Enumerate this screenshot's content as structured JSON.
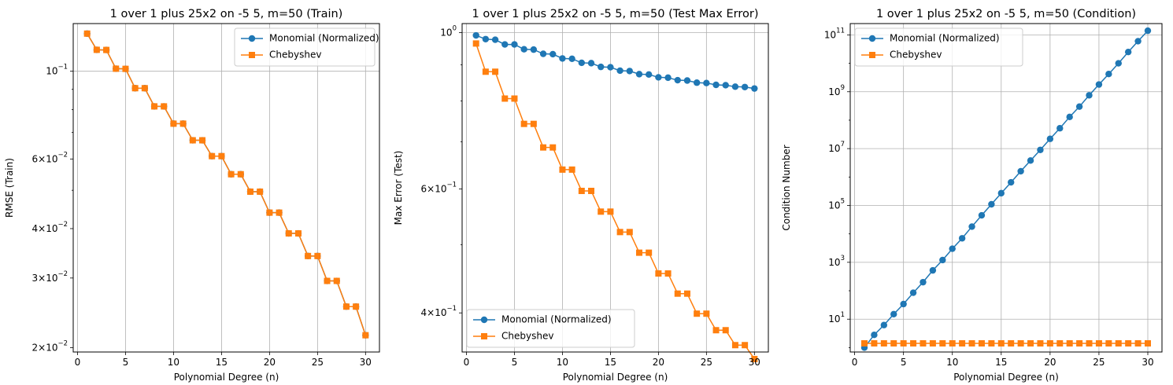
{
  "chart_data": [
    {
      "type": "line",
      "title": "1 over 1 plus 25x2 on -5 5, m=50 (Train)",
      "xlabel": "Polynomial Degree (n)",
      "ylabel": "RMSE (Train)",
      "yscale": "log",
      "xlim": [
        -0.45,
        31.45
      ],
      "ylim": [
        0.0195,
        0.132
      ],
      "xticks": [
        {
          "v": 0,
          "label": "0"
        },
        {
          "v": 5,
          "label": "5"
        },
        {
          "v": 10,
          "label": "10"
        },
        {
          "v": 15,
          "label": "15"
        },
        {
          "v": 20,
          "label": "20"
        },
        {
          "v": 25,
          "label": "25"
        },
        {
          "v": 30,
          "label": "30"
        }
      ],
      "yticks": [
        {
          "v": 0.1,
          "base": "10",
          "exp": "−1",
          "grid": true
        },
        {
          "v": 0.06,
          "mant": "6",
          "base": "10",
          "exp": "−2",
          "grid": false
        },
        {
          "v": 0.04,
          "mant": "4",
          "base": "10",
          "exp": "−2",
          "grid": false
        },
        {
          "v": 0.03,
          "mant": "3",
          "base": "10",
          "exp": "−2",
          "grid": false
        },
        {
          "v": 0.02,
          "mant": "2",
          "base": "10",
          "exp": "−2",
          "grid": false
        }
      ],
      "minor_yticks": [
        0.05,
        0.07,
        0.08,
        0.09
      ],
      "grid": true,
      "legend_position": "upper-right",
      "x": [
        1,
        2,
        3,
        4,
        5,
        6,
        7,
        8,
        9,
        10,
        11,
        12,
        13,
        14,
        15,
        16,
        17,
        18,
        19,
        20,
        21,
        22,
        23,
        24,
        25,
        26,
        27,
        28,
        29,
        30
      ],
      "series": [
        {
          "name": "Monomial (Normalized)",
          "color": "#1f77b4",
          "marker": "circle",
          "values": [
            0.1245,
            0.1133,
            0.1132,
            0.1015,
            0.1014,
            0.0906,
            0.0906,
            0.0815,
            0.0815,
            0.0737,
            0.0737,
            0.0669,
            0.0669,
            0.061,
            0.061,
            0.0549,
            0.0549,
            0.0496,
            0.0496,
            0.0439,
            0.0439,
            0.0389,
            0.0389,
            0.0341,
            0.0341,
            0.0295,
            0.0295,
            0.0254,
            0.0254,
            0.0215
          ]
        },
        {
          "name": "Chebyshev",
          "color": "#ff7f0e",
          "marker": "square",
          "values": [
            0.1245,
            0.1133,
            0.1132,
            0.1015,
            0.1014,
            0.0906,
            0.0906,
            0.0815,
            0.0815,
            0.0737,
            0.0737,
            0.0669,
            0.0669,
            0.061,
            0.061,
            0.0549,
            0.0549,
            0.0496,
            0.0496,
            0.0439,
            0.0439,
            0.0389,
            0.0389,
            0.0341,
            0.0341,
            0.0295,
            0.0295,
            0.0254,
            0.0254,
            0.0215
          ]
        }
      ]
    },
    {
      "type": "line",
      "title": "1 over 1 plus 25x2 on -5 5, m=50 (Test Max Error)",
      "xlabel": "Polynomial Degree (n)",
      "ylabel": "Max Error (Test)",
      "yscale": "log",
      "xlim": [
        -0.45,
        31.45
      ],
      "ylim": [
        0.352,
        1.03
      ],
      "xticks": [
        {
          "v": 0,
          "label": "0"
        },
        {
          "v": 5,
          "label": "5"
        },
        {
          "v": 10,
          "label": "10"
        },
        {
          "v": 15,
          "label": "15"
        },
        {
          "v": 20,
          "label": "20"
        },
        {
          "v": 25,
          "label": "25"
        },
        {
          "v": 30,
          "label": "30"
        }
      ],
      "yticks": [
        {
          "v": 1,
          "base": "10",
          "exp": "0",
          "grid": true
        },
        {
          "v": 0.6,
          "mant": "6",
          "base": "10",
          "exp": "−1",
          "grid": false
        },
        {
          "v": 0.4,
          "mant": "4",
          "base": "10",
          "exp": "−1",
          "grid": false
        }
      ],
      "minor_yticks": [
        0.5,
        0.7,
        0.8,
        0.9
      ],
      "grid": true,
      "legend_position": "lower-left",
      "x": [
        1,
        2,
        3,
        4,
        5,
        6,
        7,
        8,
        9,
        10,
        11,
        12,
        13,
        14,
        15,
        16,
        17,
        18,
        19,
        20,
        21,
        22,
        23,
        24,
        25,
        26,
        27,
        28,
        29,
        30
      ],
      "series": [
        {
          "name": "Monomial (Normalized)",
          "color": "#1f77b4",
          "marker": "circle",
          "values": [
            0.991,
            0.979,
            0.977,
            0.962,
            0.962,
            0.947,
            0.946,
            0.933,
            0.932,
            0.919,
            0.918,
            0.906,
            0.905,
            0.894,
            0.893,
            0.883,
            0.882,
            0.873,
            0.872,
            0.864,
            0.863,
            0.856,
            0.855,
            0.849,
            0.848,
            0.843,
            0.842,
            0.838,
            0.837,
            0.833
          ]
        },
        {
          "name": "Chebyshev",
          "color": "#ff7f0e",
          "marker": "square",
          "values": [
            0.965,
            0.88,
            0.88,
            0.806,
            0.806,
            0.742,
            0.742,
            0.687,
            0.687,
            0.639,
            0.639,
            0.596,
            0.596,
            0.557,
            0.557,
            0.521,
            0.521,
            0.487,
            0.487,
            0.455,
            0.455,
            0.426,
            0.426,
            0.399,
            0.399,
            0.378,
            0.378,
            0.36,
            0.36,
            0.344
          ]
        }
      ]
    },
    {
      "type": "line",
      "title": "1 over 1 plus 25x2 on -5 5, m=50 (Condition)",
      "xlabel": "Polynomial Degree (n)",
      "ylabel": "Condition Number",
      "yscale": "log",
      "xlim": [
        -0.45,
        31.45
      ],
      "ylim": [
        0.7,
        250000000000.0
      ],
      "xticks": [
        {
          "v": 0,
          "label": "0"
        },
        {
          "v": 5,
          "label": "5"
        },
        {
          "v": 10,
          "label": "10"
        },
        {
          "v": 15,
          "label": "15"
        },
        {
          "v": 20,
          "label": "20"
        },
        {
          "v": 25,
          "label": "25"
        },
        {
          "v": 30,
          "label": "30"
        }
      ],
      "yticks": [
        {
          "v": 100000000000.0,
          "base": "10",
          "exp": "11",
          "grid": true
        },
        {
          "v": 1000000000.0,
          "base": "10",
          "exp": "9",
          "grid": true
        },
        {
          "v": 10000000.0,
          "base": "10",
          "exp": "7",
          "grid": true
        },
        {
          "v": 100000.0,
          "base": "10",
          "exp": "5",
          "grid": true
        },
        {
          "v": 1000.0,
          "base": "10",
          "exp": "3",
          "grid": true
        },
        {
          "v": 10.0,
          "base": "10",
          "exp": "1",
          "grid": true
        }
      ],
      "minor_yticks": [
        1.0,
        100.0,
        10000.0,
        1000000.0,
        100000000.0,
        10000000000.0
      ],
      "grid": true,
      "legend_position": "upper-left",
      "x": [
        1,
        2,
        3,
        4,
        5,
        6,
        7,
        8,
        9,
        10,
        11,
        12,
        13,
        14,
        15,
        16,
        17,
        18,
        19,
        20,
        21,
        22,
        23,
        24,
        25,
        26,
        27,
        28,
        29,
        30
      ],
      "series": [
        {
          "name": "Monomial (Normalized)",
          "color": "#1f77b4",
          "marker": "circle",
          "values": [
            1.0,
            2.8,
            6.2,
            15,
            34,
            85,
            200,
            520,
            1200,
            3000,
            7000,
            18000,
            45000,
            110000,
            270000,
            650000,
            1600000,
            3800000,
            9000000,
            22000000,
            52000000,
            130000000,
            300000000,
            750000000,
            1800000000,
            4200000000,
            10000000000,
            25000000000,
            60000000000,
            140000000000
          ]
        },
        {
          "name": "Chebyshev",
          "color": "#ff7f0e",
          "marker": "square",
          "values": [
            1.41,
            1.41,
            1.41,
            1.41,
            1.41,
            1.41,
            1.41,
            1.41,
            1.41,
            1.41,
            1.41,
            1.41,
            1.41,
            1.41,
            1.41,
            1.41,
            1.41,
            1.41,
            1.41,
            1.41,
            1.41,
            1.41,
            1.41,
            1.41,
            1.41,
            1.41,
            1.41,
            1.41,
            1.41,
            1.41
          ]
        }
      ]
    }
  ]
}
